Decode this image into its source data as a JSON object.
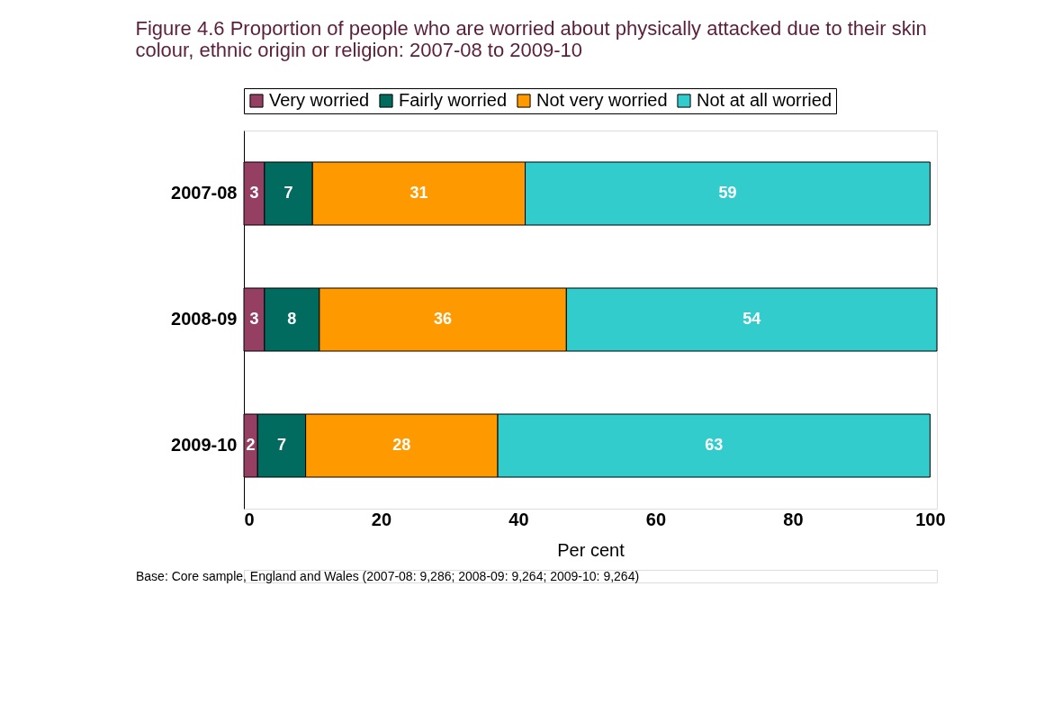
{
  "chart_data": {
    "type": "bar",
    "orientation": "horizontal",
    "stacked": true,
    "title": "Figure 4.6  Proportion of people who are worried about physically attacked due to their skin colour, ethnic origin or religion: 2007-08 to 2009-10",
    "xlabel": "Per cent",
    "categories": [
      "2007-08",
      "2008-09",
      "2009-10"
    ],
    "series": [
      {
        "name": "Very worried",
        "color": "#953f62",
        "values": [
          3,
          3,
          2
        ]
      },
      {
        "name": "Fairly worried",
        "color": "#006b5e",
        "values": [
          7,
          8,
          7
        ]
      },
      {
        "name": "Not very worried",
        "color": "#ff9900",
        "values": [
          31,
          36,
          28
        ]
      },
      {
        "name": "Not at all worried",
        "color": "#33cccc",
        "values": [
          59,
          54,
          63
        ]
      }
    ],
    "xlim": [
      0,
      101
    ],
    "xticks": [
      0,
      20,
      40,
      60,
      80,
      100
    ],
    "data_labels": true,
    "grid": false,
    "legend": "top",
    "annotations": [
      "Base:  Core sample, England and Wales (2007-08: 9,286; 2008-09:  9,264; 2009-10: 9,264)"
    ]
  }
}
